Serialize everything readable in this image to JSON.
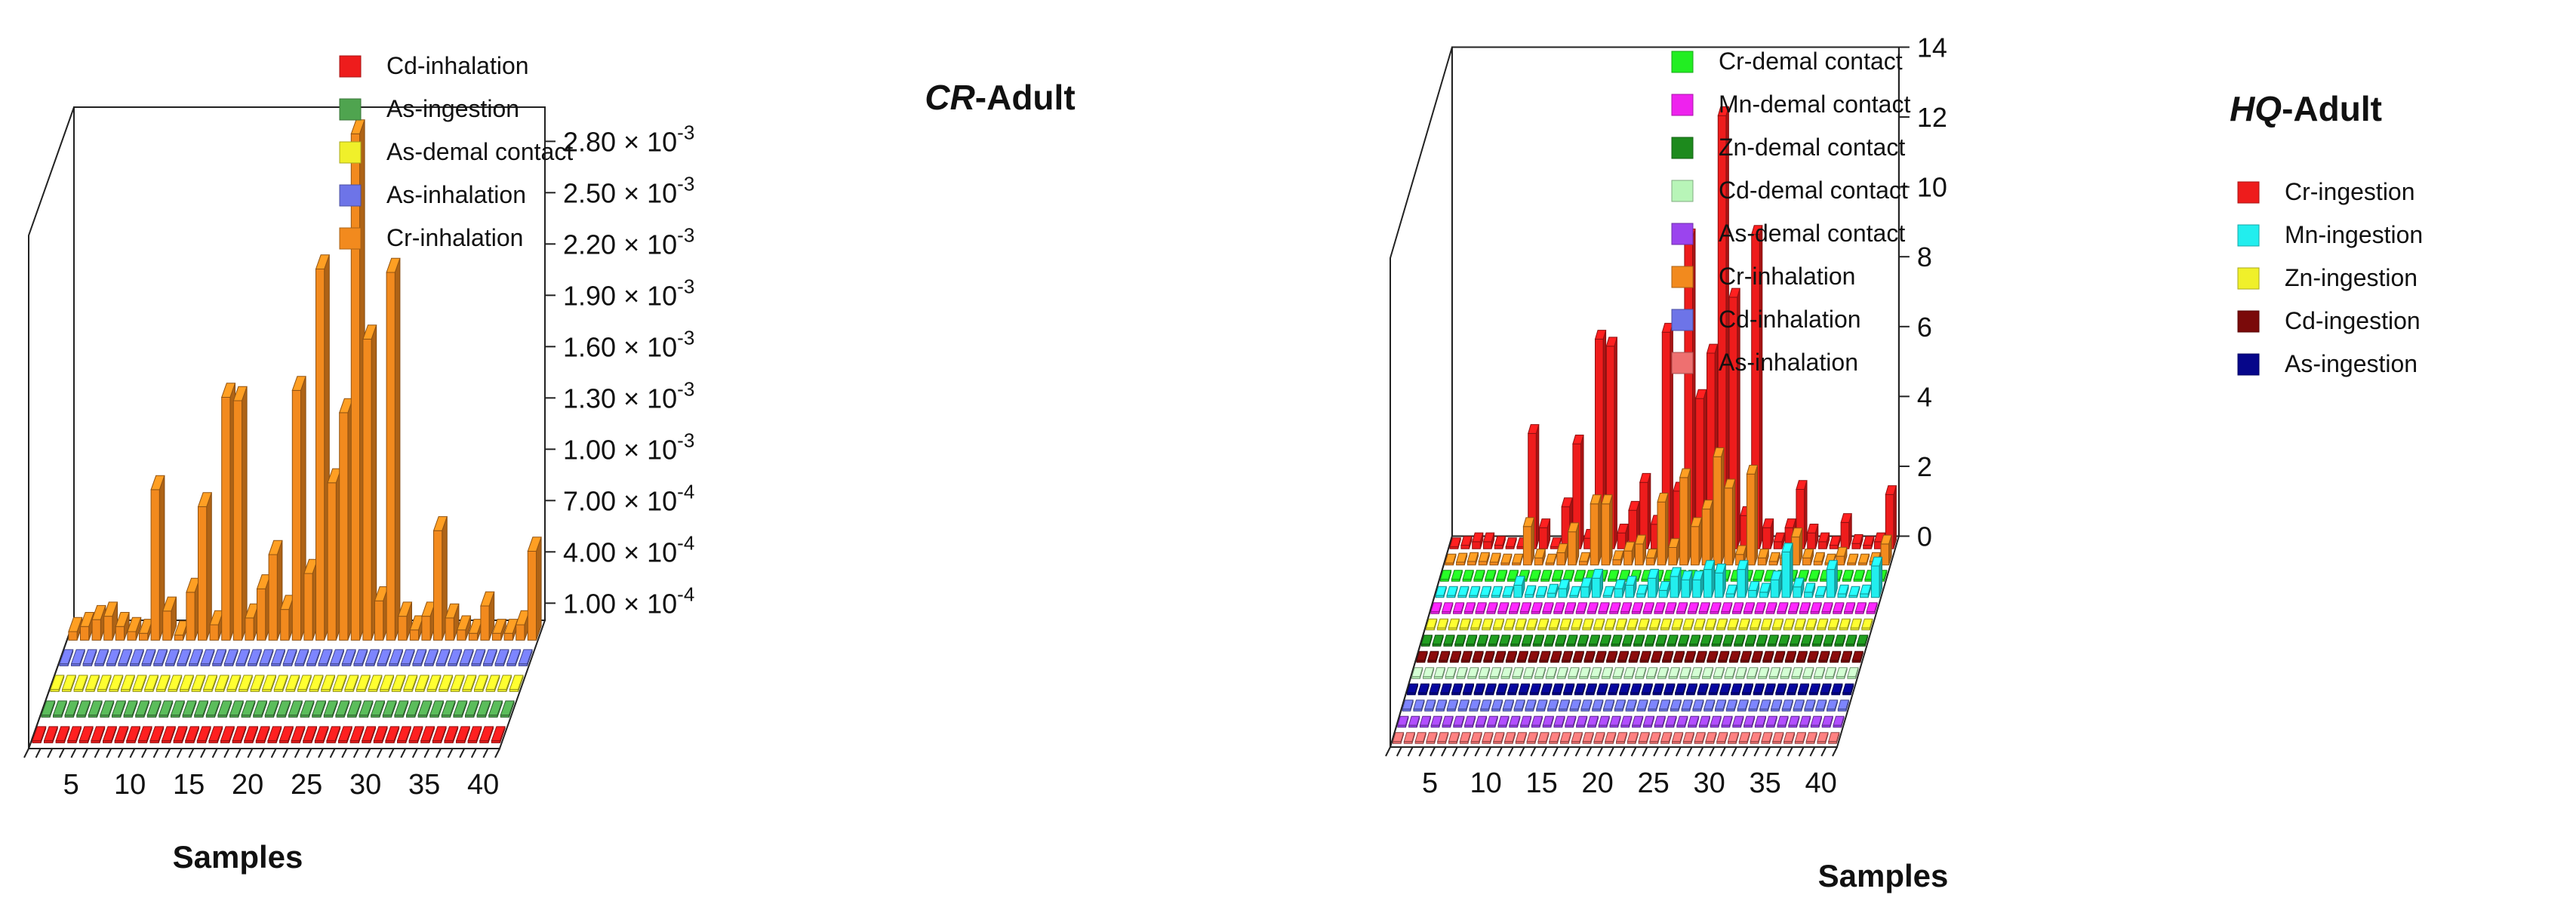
{
  "colors": {
    "axis": "#222222",
    "background": "#ffffff"
  },
  "chart_data": [
    {
      "type": "bar",
      "subtype": "3d-bar",
      "title_italic": "CR",
      "title_rest": "-Adult",
      "xlabel": "Samples",
      "x_tick_labels": [
        "5",
        "10",
        "15",
        "20",
        "25",
        "30",
        "35",
        "40"
      ],
      "x_ticks": [
        5,
        10,
        15,
        20,
        25,
        30,
        35,
        40
      ],
      "samples": 40,
      "z_axis": {
        "min": 0,
        "max": 0.003,
        "tick_values": [
          0.0001,
          0.0004,
          0.0007,
          0.001,
          0.0013,
          0.0016,
          0.0019,
          0.0022,
          0.0025,
          0.0028
        ],
        "tick_mantissas": [
          "1.00",
          "4.00",
          "7.00",
          "1.00",
          "1.30",
          "1.60",
          "1.90",
          "2.20",
          "2.50",
          "2.80"
        ],
        "tick_exponents": [
          "-4",
          "-4",
          "-4",
          "-3",
          "-3",
          "-3",
          "-3",
          "-3",
          "-3",
          "-3"
        ],
        "tick_multiplier": "× 10"
      },
      "series": [
        {
          "name": "Cd-inhalation",
          "color": "#ee1c1c",
          "values": [
            0,
            0,
            0,
            0,
            0,
            0,
            0,
            0,
            0,
            0,
            0,
            0,
            0,
            0,
            0,
            0,
            0,
            0,
            0,
            0,
            0,
            0,
            0,
            0,
            0,
            0,
            0,
            0,
            0,
            0,
            0,
            0,
            0,
            0,
            0,
            0,
            0,
            0,
            0,
            0
          ]
        },
        {
          "name": "As-ingestion",
          "color": "#4fa44f",
          "values": [
            0,
            0,
            0,
            0,
            0,
            0,
            0,
            0,
            0,
            0,
            0,
            0,
            0,
            0,
            0,
            0,
            0,
            0,
            0,
            0,
            0,
            0,
            0,
            0,
            0,
            0,
            0,
            0,
            0,
            0,
            0,
            0,
            0,
            0,
            0,
            0,
            0,
            0,
            0,
            0
          ]
        },
        {
          "name": "As-demal contact",
          "color": "#f0f02a",
          "values": [
            0,
            0,
            0,
            0,
            0,
            0,
            0,
            0,
            0,
            0,
            0,
            0,
            0,
            0,
            0,
            0,
            0,
            0,
            0,
            0,
            0,
            0,
            0,
            0,
            0,
            0,
            0,
            0,
            0,
            0,
            0,
            0,
            0,
            0,
            0,
            0,
            0,
            0,
            0,
            0
          ]
        },
        {
          "name": "As-inhalation",
          "color": "#6d74e8",
          "values": [
            0,
            0,
            0,
            0,
            0,
            0,
            0,
            0,
            0,
            0,
            0,
            0,
            0,
            0,
            0,
            0,
            0,
            0,
            0,
            0,
            0,
            0,
            0,
            0,
            0,
            0,
            0,
            0,
            0,
            0,
            0,
            0,
            0,
            0,
            0,
            0,
            0,
            0,
            0,
            0
          ]
        },
        {
          "name": "Cr-inhalation",
          "color": "#f28a1e",
          "values": [
            5e-05,
            8e-05,
            0.00012,
            0.00014,
            8e-05,
            5e-05,
            4e-05,
            0.00088,
            0.00017,
            3e-05,
            0.00028,
            0.00078,
            9e-05,
            0.00142,
            0.0014,
            0.00013,
            0.0003,
            0.0005,
            0.00018,
            0.00146,
            0.00039,
            0.00217,
            0.00092,
            0.00133,
            0.00296,
            0.00176,
            0.00023,
            0.00215,
            0.00014,
            6e-05,
            0.00014,
            0.00064,
            0.00013,
            6e-05,
            4e-05,
            0.0002,
            4e-05,
            4e-05,
            9e-05,
            0.00052
          ]
        }
      ]
    },
    {
      "type": "bar",
      "subtype": "3d-bar",
      "title_italic": "HQ",
      "title_rest": "-Adult",
      "xlabel": "Samples",
      "x_tick_labels": [
        "5",
        "10",
        "15",
        "20",
        "25",
        "30",
        "35",
        "40"
      ],
      "x_ticks": [
        5,
        10,
        15,
        20,
        25,
        30,
        35,
        40
      ],
      "samples": 40,
      "z_axis": {
        "min": 0,
        "max": 14,
        "tick_values": [
          0,
          2,
          4,
          6,
          8,
          10,
          12,
          14
        ],
        "tick_labels": [
          "0",
          "2",
          "4",
          "6",
          "8",
          "10",
          "12",
          "14"
        ]
      },
      "series": [
        {
          "name": "As-inhalation",
          "color": "#ee7070",
          "values": [
            0,
            0,
            0,
            0,
            0,
            0,
            0,
            0,
            0,
            0,
            0,
            0,
            0,
            0,
            0,
            0,
            0,
            0,
            0,
            0,
            0,
            0,
            0,
            0,
            0,
            0,
            0,
            0,
            0,
            0,
            0,
            0,
            0,
            0,
            0,
            0,
            0,
            0,
            0,
            0
          ]
        },
        {
          "name": "As-demal contact",
          "color": "#9b44ee",
          "values": [
            0,
            0,
            0,
            0,
            0,
            0,
            0,
            0,
            0,
            0,
            0,
            0,
            0,
            0,
            0,
            0,
            0,
            0,
            0,
            0,
            0,
            0,
            0,
            0,
            0,
            0,
            0,
            0,
            0,
            0,
            0,
            0,
            0,
            0,
            0,
            0,
            0,
            0,
            0,
            0
          ]
        },
        {
          "name": "Cd-inhalation",
          "color": "#6d74e8",
          "values": [
            0,
            0,
            0,
            0,
            0,
            0,
            0,
            0,
            0,
            0,
            0,
            0,
            0,
            0,
            0,
            0,
            0,
            0,
            0,
            0,
            0,
            0,
            0,
            0,
            0,
            0,
            0,
            0,
            0,
            0,
            0,
            0,
            0,
            0,
            0,
            0,
            0,
            0,
            0,
            0
          ]
        },
        {
          "name": "As-ingestion",
          "color": "#06068a",
          "values": [
            0,
            0,
            0,
            0,
            0,
            0,
            0,
            0,
            0,
            0,
            0,
            0,
            0,
            0,
            0,
            0,
            0,
            0,
            0,
            0,
            0,
            0,
            0,
            0,
            0,
            0,
            0,
            0,
            0,
            0,
            0,
            0,
            0,
            0,
            0,
            0,
            0,
            0,
            0,
            0
          ]
        },
        {
          "name": "Cd-demal contact",
          "color": "#b8f5b8",
          "values": [
            0,
            0,
            0,
            0,
            0,
            0,
            0,
            0,
            0,
            0,
            0,
            0,
            0,
            0,
            0,
            0,
            0,
            0,
            0,
            0,
            0,
            0,
            0,
            0,
            0,
            0,
            0,
            0,
            0,
            0,
            0,
            0,
            0,
            0,
            0,
            0,
            0,
            0,
            0,
            0
          ]
        },
        {
          "name": "Cd-ingestion",
          "color": "#7a0a0a",
          "values": [
            0,
            0,
            0,
            0,
            0,
            0,
            0,
            0,
            0,
            0,
            0,
            0,
            0,
            0,
            0,
            0,
            0,
            0,
            0,
            0,
            0,
            0,
            0,
            0,
            0,
            0,
            0,
            0,
            0,
            0,
            0,
            0,
            0,
            0,
            0,
            0,
            0,
            0,
            0,
            0
          ]
        },
        {
          "name": "Zn-demal contact",
          "color": "#1d8a1d",
          "values": [
            0,
            0,
            0,
            0,
            0,
            0,
            0,
            0,
            0,
            0,
            0,
            0,
            0,
            0,
            0,
            0,
            0,
            0,
            0,
            0,
            0,
            0,
            0,
            0,
            0,
            0,
            0,
            0,
            0,
            0,
            0,
            0,
            0,
            0,
            0,
            0,
            0,
            0,
            0,
            0
          ]
        },
        {
          "name": "Zn-ingestion",
          "color": "#f0f02a",
          "values": [
            0,
            0,
            0,
            0,
            0,
            0,
            0,
            0,
            0,
            0,
            0,
            0,
            0,
            0,
            0,
            0,
            0,
            0,
            0,
            0,
            0,
            0,
            0,
            0,
            0,
            0,
            0,
            0,
            0,
            0,
            0,
            0,
            0,
            0,
            0,
            0,
            0,
            0,
            0,
            0
          ]
        },
        {
          "name": "Mn-demal contact",
          "color": "#ee22ee",
          "values": [
            0,
            0,
            0,
            0,
            0,
            0,
            0,
            0,
            0,
            0,
            0,
            0,
            0,
            0,
            0,
            0,
            0,
            0,
            0,
            0,
            0,
            0,
            0,
            0,
            0,
            0,
            0,
            0,
            0,
            0,
            0,
            0,
            0,
            0,
            0,
            0,
            0,
            0,
            0,
            0
          ]
        },
        {
          "name": "Mn-ingestion",
          "color": "#22eeee",
          "values": [
            0.02,
            0.03,
            0.05,
            0.04,
            0.03,
            0.02,
            0.02,
            0.35,
            0.08,
            0.02,
            0.12,
            0.25,
            0.05,
            0.3,
            0.55,
            0.05,
            0.25,
            0.35,
            0.1,
            0.55,
            0.2,
            0.6,
            0.5,
            0.5,
            0.8,
            0.7,
            0.1,
            0.8,
            0.2,
            0.15,
            0.5,
            1.3,
            0.3,
            0.15,
            0.05,
            0.8,
            0.1,
            0.05,
            0.1,
            0.9
          ]
        },
        {
          "name": "Cr-demal contact",
          "color": "#22ee22",
          "values": [
            0,
            0,
            0,
            0,
            0,
            0,
            0,
            0,
            0,
            0,
            0,
            0,
            0,
            0,
            0,
            0,
            0,
            0,
            0,
            0,
            0,
            0,
            0,
            0,
            0,
            0,
            0,
            0,
            0,
            0,
            0,
            0,
            0,
            0,
            0,
            0,
            0,
            0,
            0,
            0
          ]
        },
        {
          "name": "Cr-inhalation",
          "color": "#f28a1e",
          "values": [
            0.05,
            0.08,
            0.1,
            0.1,
            0.08,
            0.05,
            0.05,
            1.1,
            0.2,
            0.04,
            0.35,
            0.95,
            0.1,
            1.75,
            1.75,
            0.15,
            0.4,
            0.6,
            0.2,
            1.8,
            0.5,
            2.5,
            1.1,
            1.6,
            3.1,
            2.2,
            0.3,
            2.6,
            0.2,
            0.1,
            0.2,
            0.8,
            0.2,
            0.1,
            0.05,
            0.25,
            0.05,
            0.05,
            0.1,
            0.6
          ]
        },
        {
          "name": "Cr-ingestion",
          "color": "#ee1c1c",
          "values": [
            0.05,
            0.1,
            0.2,
            0.2,
            0.1,
            0.05,
            0.05,
            3.3,
            0.6,
            0.05,
            1.2,
            3.0,
            0.3,
            6.0,
            5.8,
            0.45,
            1.1,
            1.9,
            0.7,
            6.2,
            1.65,
            8.9,
            4.3,
            5.6,
            12.4,
            7.2,
            0.95,
            9.0,
            0.6,
            0.2,
            0.6,
            1.7,
            0.45,
            0.2,
            0.1,
            0.75,
            0.15,
            0.1,
            0.2,
            1.55
          ]
        }
      ],
      "legend_left": [
        "Cr-demal contact",
        "Mn-demal contact",
        "Zn-demal contact",
        "Cd-demal contact",
        "As-demal contact",
        "Cr-inhalation",
        "Cd-inhalation",
        "As-inhalation"
      ],
      "legend_right": [
        "Cr-ingestion",
        "Mn-ingestion",
        "Zn-ingestion",
        "Cd-ingestion",
        "As-ingestion"
      ]
    }
  ]
}
